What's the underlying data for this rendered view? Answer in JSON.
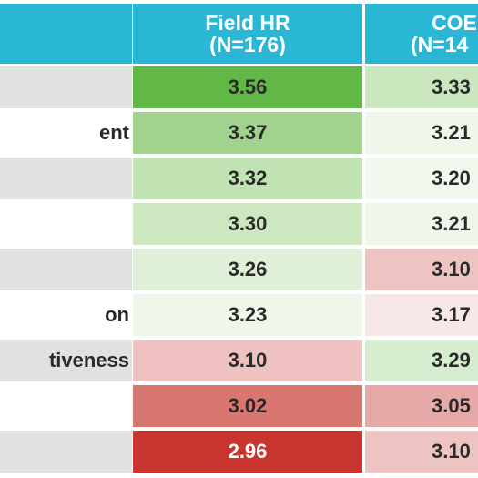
{
  "header": {
    "col1_line1": "Field HR",
    "col1_line2": "(N=176)",
    "col2_line1": "COE",
    "col2_line2": "(N=14"
  },
  "rows": [
    {
      "label": "",
      "field": "3.56",
      "coe": "3.33",
      "label_bg": "#e1e1e1",
      "field_bg": "#62b847",
      "coe_bg": "#c9e6bd",
      "field_text": "dark"
    },
    {
      "label": "ent",
      "field": "3.37",
      "coe": "3.21",
      "label_bg": "#ffffff",
      "field_bg": "#a1d38e",
      "coe_bg": "#eef7ea",
      "field_text": "dark"
    },
    {
      "label": "",
      "field": "3.32",
      "coe": "3.20",
      "label_bg": "#e1e1e1",
      "field_bg": "#c2e3b4",
      "coe_bg": "#f1f8ee",
      "field_text": "dark"
    },
    {
      "label": "",
      "field": "3.30",
      "coe": "3.21",
      "label_bg": "#ffffff",
      "field_bg": "#cde8c1",
      "coe_bg": "#eef7ea",
      "field_text": "dark"
    },
    {
      "label": "",
      "field": "3.26",
      "coe": "3.10",
      "label_bg": "#e1e1e1",
      "field_bg": "#e0f0d8",
      "coe_bg": "#eec4c3",
      "field_text": "dark"
    },
    {
      "label": "on",
      "field": "3.23",
      "coe": "3.17",
      "label_bg": "#ffffff",
      "field_bg": "#eef7e9",
      "coe_bg": "#f7e7e6",
      "field_text": "dark"
    },
    {
      "label": "tiveness",
      "field": "3.10",
      "coe": "3.29",
      "label_bg": "#e1e1e1",
      "field_bg": "#efc2c1",
      "coe_bg": "#d6ecce",
      "field_text": "dark"
    },
    {
      "label": "",
      "field": "3.02",
      "coe": "3.05",
      "label_bg": "#ffffff",
      "field_bg": "#d9766f",
      "coe_bg": "#e7a9a7",
      "field_text": "dark"
    },
    {
      "label": "",
      "field": "2.96",
      "coe": "3.10",
      "label_bg": "#e1e1e1",
      "field_bg": "#c8352f",
      "coe_bg": "#eec4c3",
      "field_text": "light"
    }
  ]
}
